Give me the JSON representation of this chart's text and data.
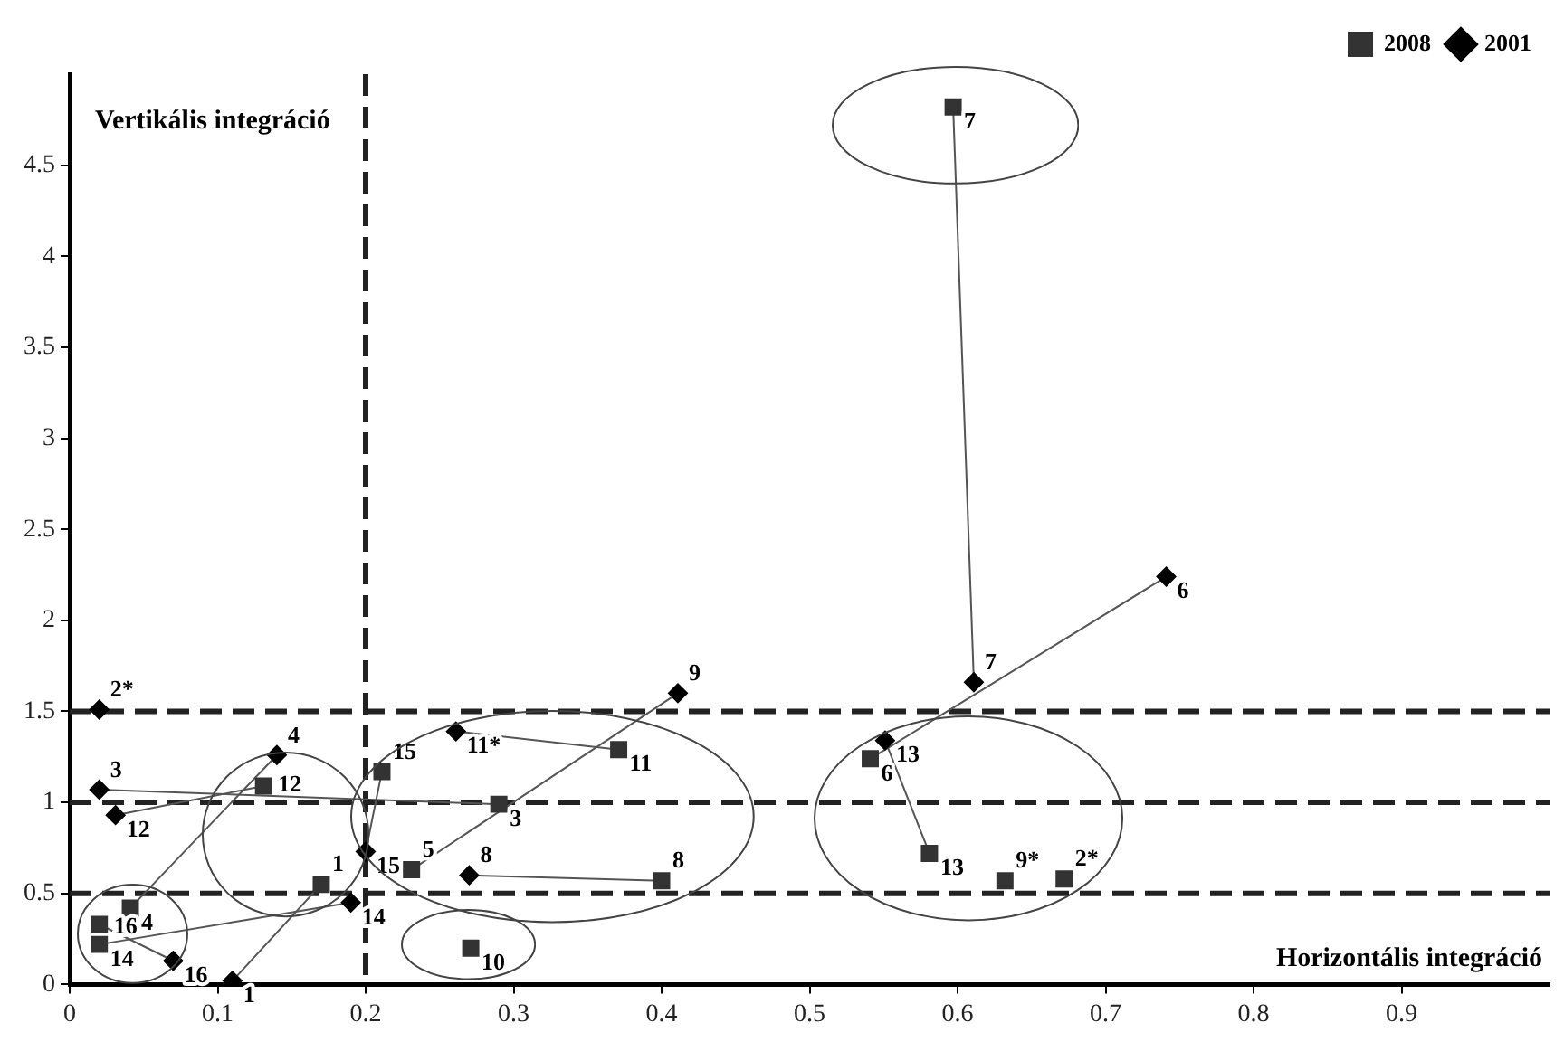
{
  "chart_data": {
    "type": "scatter",
    "xlabel": "Horizontális integráció",
    "ylabel": "Vertikális integráció",
    "xlim": [
      0,
      1
    ],
    "xticks": [
      0,
      0.1,
      0.2,
      0.3,
      0.4,
      0.5,
      0.6,
      0.7,
      0.8,
      0.9
    ],
    "ylim": [
      0,
      5
    ],
    "yticks": [
      0,
      0.5,
      1,
      1.5,
      2,
      2.5,
      3,
      3.5,
      4,
      4.5
    ],
    "grid": false,
    "legend": "top right",
    "series": [
      {
        "name": "2008",
        "color": "#333333",
        "marker": "square",
        "x": [
          0.02,
          0.02,
          0.041,
          0.131,
          0.17,
          0.211,
          0.231,
          0.29,
          0.271,
          0.371,
          0.4,
          0.541,
          0.581,
          0.632,
          0.672,
          0.597
        ],
        "values": [
          0.22,
          0.33,
          0.42,
          1.09,
          0.55,
          1.17,
          0.63,
          0.99,
          0.2,
          1.29,
          0.57,
          1.24,
          0.72,
          0.57,
          0.58,
          4.82
        ]
      },
      {
        "name": "2001",
        "color": "#000000",
        "marker": "diamond",
        "x": [
          0.02,
          0.02,
          0.031,
          0.14,
          0.07,
          0.11,
          0.19,
          0.2,
          0.261,
          0.27,
          0.411,
          0.611,
          0.551,
          0.741
        ],
        "values": [
          1.51,
          1.07,
          0.93,
          1.26,
          0.13,
          0.02,
          0.45,
          0.73,
          1.39,
          0.6,
          1.6,
          1.66,
          1.34,
          2.24
        ]
      },
      {
        "type": "line",
        "color": "#555555",
        "marker": "none",
        "x": [
          0.611,
          0.597
        ],
        "values": [
          1.66,
          4.82
        ]
      },
      {
        "type": "line",
        "color": "#555555",
        "marker": "none",
        "x": [
          0.741,
          0.541
        ],
        "values": [
          2.24,
          1.24
        ]
      },
      {
        "type": "line",
        "color": "#555555",
        "marker": "none",
        "x": [
          0.551,
          0.581
        ],
        "values": [
          1.34,
          0.72
        ]
      },
      {
        "type": "line",
        "color": "#555555",
        "marker": "none",
        "x": [
          0.411,
          0.231
        ],
        "values": [
          1.6,
          0.63
        ]
      },
      {
        "type": "line",
        "color": "#555555",
        "marker": "none",
        "x": [
          0.261,
          0.371
        ],
        "values": [
          1.39,
          1.29
        ]
      },
      {
        "type": "line",
        "color": "#555555",
        "marker": "none",
        "x": [
          0.27,
          0.4
        ],
        "values": [
          0.6,
          0.57
        ]
      },
      {
        "type": "line",
        "color": "#555555",
        "marker": "none",
        "x": [
          0.02,
          0.29
        ],
        "values": [
          1.07,
          0.99
        ]
      },
      {
        "type": "line",
        "color": "#555555",
        "marker": "none",
        "x": [
          0.031,
          0.131
        ],
        "values": [
          0.93,
          1.09
        ]
      },
      {
        "type": "line",
        "color": "#555555",
        "marker": "none",
        "x": [
          0.14,
          0.041
        ],
        "values": [
          1.26,
          0.42
        ]
      },
      {
        "type": "line",
        "color": "#555555",
        "marker": "none",
        "x": [
          0.11,
          0.17
        ],
        "values": [
          0.02,
          0.55
        ]
      },
      {
        "type": "line",
        "color": "#555555",
        "marker": "none",
        "x": [
          0.19,
          0.02
        ],
        "values": [
          0.45,
          0.22
        ]
      },
      {
        "type": "line",
        "color": "#555555",
        "marker": "none",
        "x": [
          0.07,
          0.02
        ],
        "values": [
          0.13,
          0.33
        ]
      },
      {
        "type": "line",
        "color": "#555555",
        "marker": "none",
        "x": [
          0.2,
          0.211
        ],
        "values": [
          0.73,
          1.17
        ]
      }
    ],
    "annotations": [
      {
        "text": "14",
        "x": 0.02,
        "y": 0.22
      },
      {
        "text": "16",
        "x": 0.02,
        "y": 0.33
      },
      {
        "text": "4",
        "x": 0.041,
        "y": 0.42
      },
      {
        "text": "12",
        "x": 0.131,
        "y": 1.09
      },
      {
        "text": "1",
        "x": 0.17,
        "y": 0.55
      },
      {
        "text": "15",
        "x": 0.211,
        "y": 1.17
      },
      {
        "text": "5",
        "x": 0.231,
        "y": 0.63
      },
      {
        "text": "3",
        "x": 0.29,
        "y": 0.99
      },
      {
        "text": "10",
        "x": 0.271,
        "y": 0.2
      },
      {
        "text": "11",
        "x": 0.371,
        "y": 1.29
      },
      {
        "text": "8",
        "x": 0.4,
        "y": 0.57
      },
      {
        "text": "6",
        "x": 0.541,
        "y": 1.24
      },
      {
        "text": "13",
        "x": 0.581,
        "y": 0.72
      },
      {
        "text": "9*",
        "x": 0.632,
        "y": 0.57
      },
      {
        "text": "2*",
        "x": 0.672,
        "y": 0.58
      },
      {
        "text": "7",
        "x": 0.597,
        "y": 4.82
      },
      {
        "text": "2*",
        "x": 0.02,
        "y": 1.51
      },
      {
        "text": "3",
        "x": 0.02,
        "y": 1.07
      },
      {
        "text": "12",
        "x": 0.031,
        "y": 0.93
      },
      {
        "text": "4",
        "x": 0.14,
        "y": 1.26
      },
      {
        "text": "16",
        "x": 0.07,
        "y": 0.13
      },
      {
        "text": "1",
        "x": 0.11,
        "y": 0.02
      },
      {
        "text": "14",
        "x": 0.19,
        "y": 0.45
      },
      {
        "text": "15",
        "x": 0.2,
        "y": 0.73
      },
      {
        "text": "11*",
        "x": 0.261,
        "y": 1.39
      },
      {
        "text": "8",
        "x": 0.27,
        "y": 0.6
      },
      {
        "text": "9",
        "x": 0.411,
        "y": 1.6
      },
      {
        "text": "7",
        "x": 0.611,
        "y": 1.66
      },
      {
        "text": "13",
        "x": 0.551,
        "y": 1.34
      },
      {
        "text": "6",
        "x": 0.741,
        "y": 2.24
      }
    ],
    "ref_lines": [
      {
        "axis": "y",
        "value": 1.5,
        "color": "#222222",
        "line_style": "dashed"
      },
      {
        "axis": "y",
        "value": 1,
        "color": "#222222",
        "line_style": "dashed"
      },
      {
        "axis": "y",
        "value": 0.5,
        "color": "#222222",
        "line_style": "dashed"
      },
      {
        "axis": "x",
        "value": 0.2,
        "color": "#222222",
        "line_style": "dashed"
      }
    ]
  }
}
